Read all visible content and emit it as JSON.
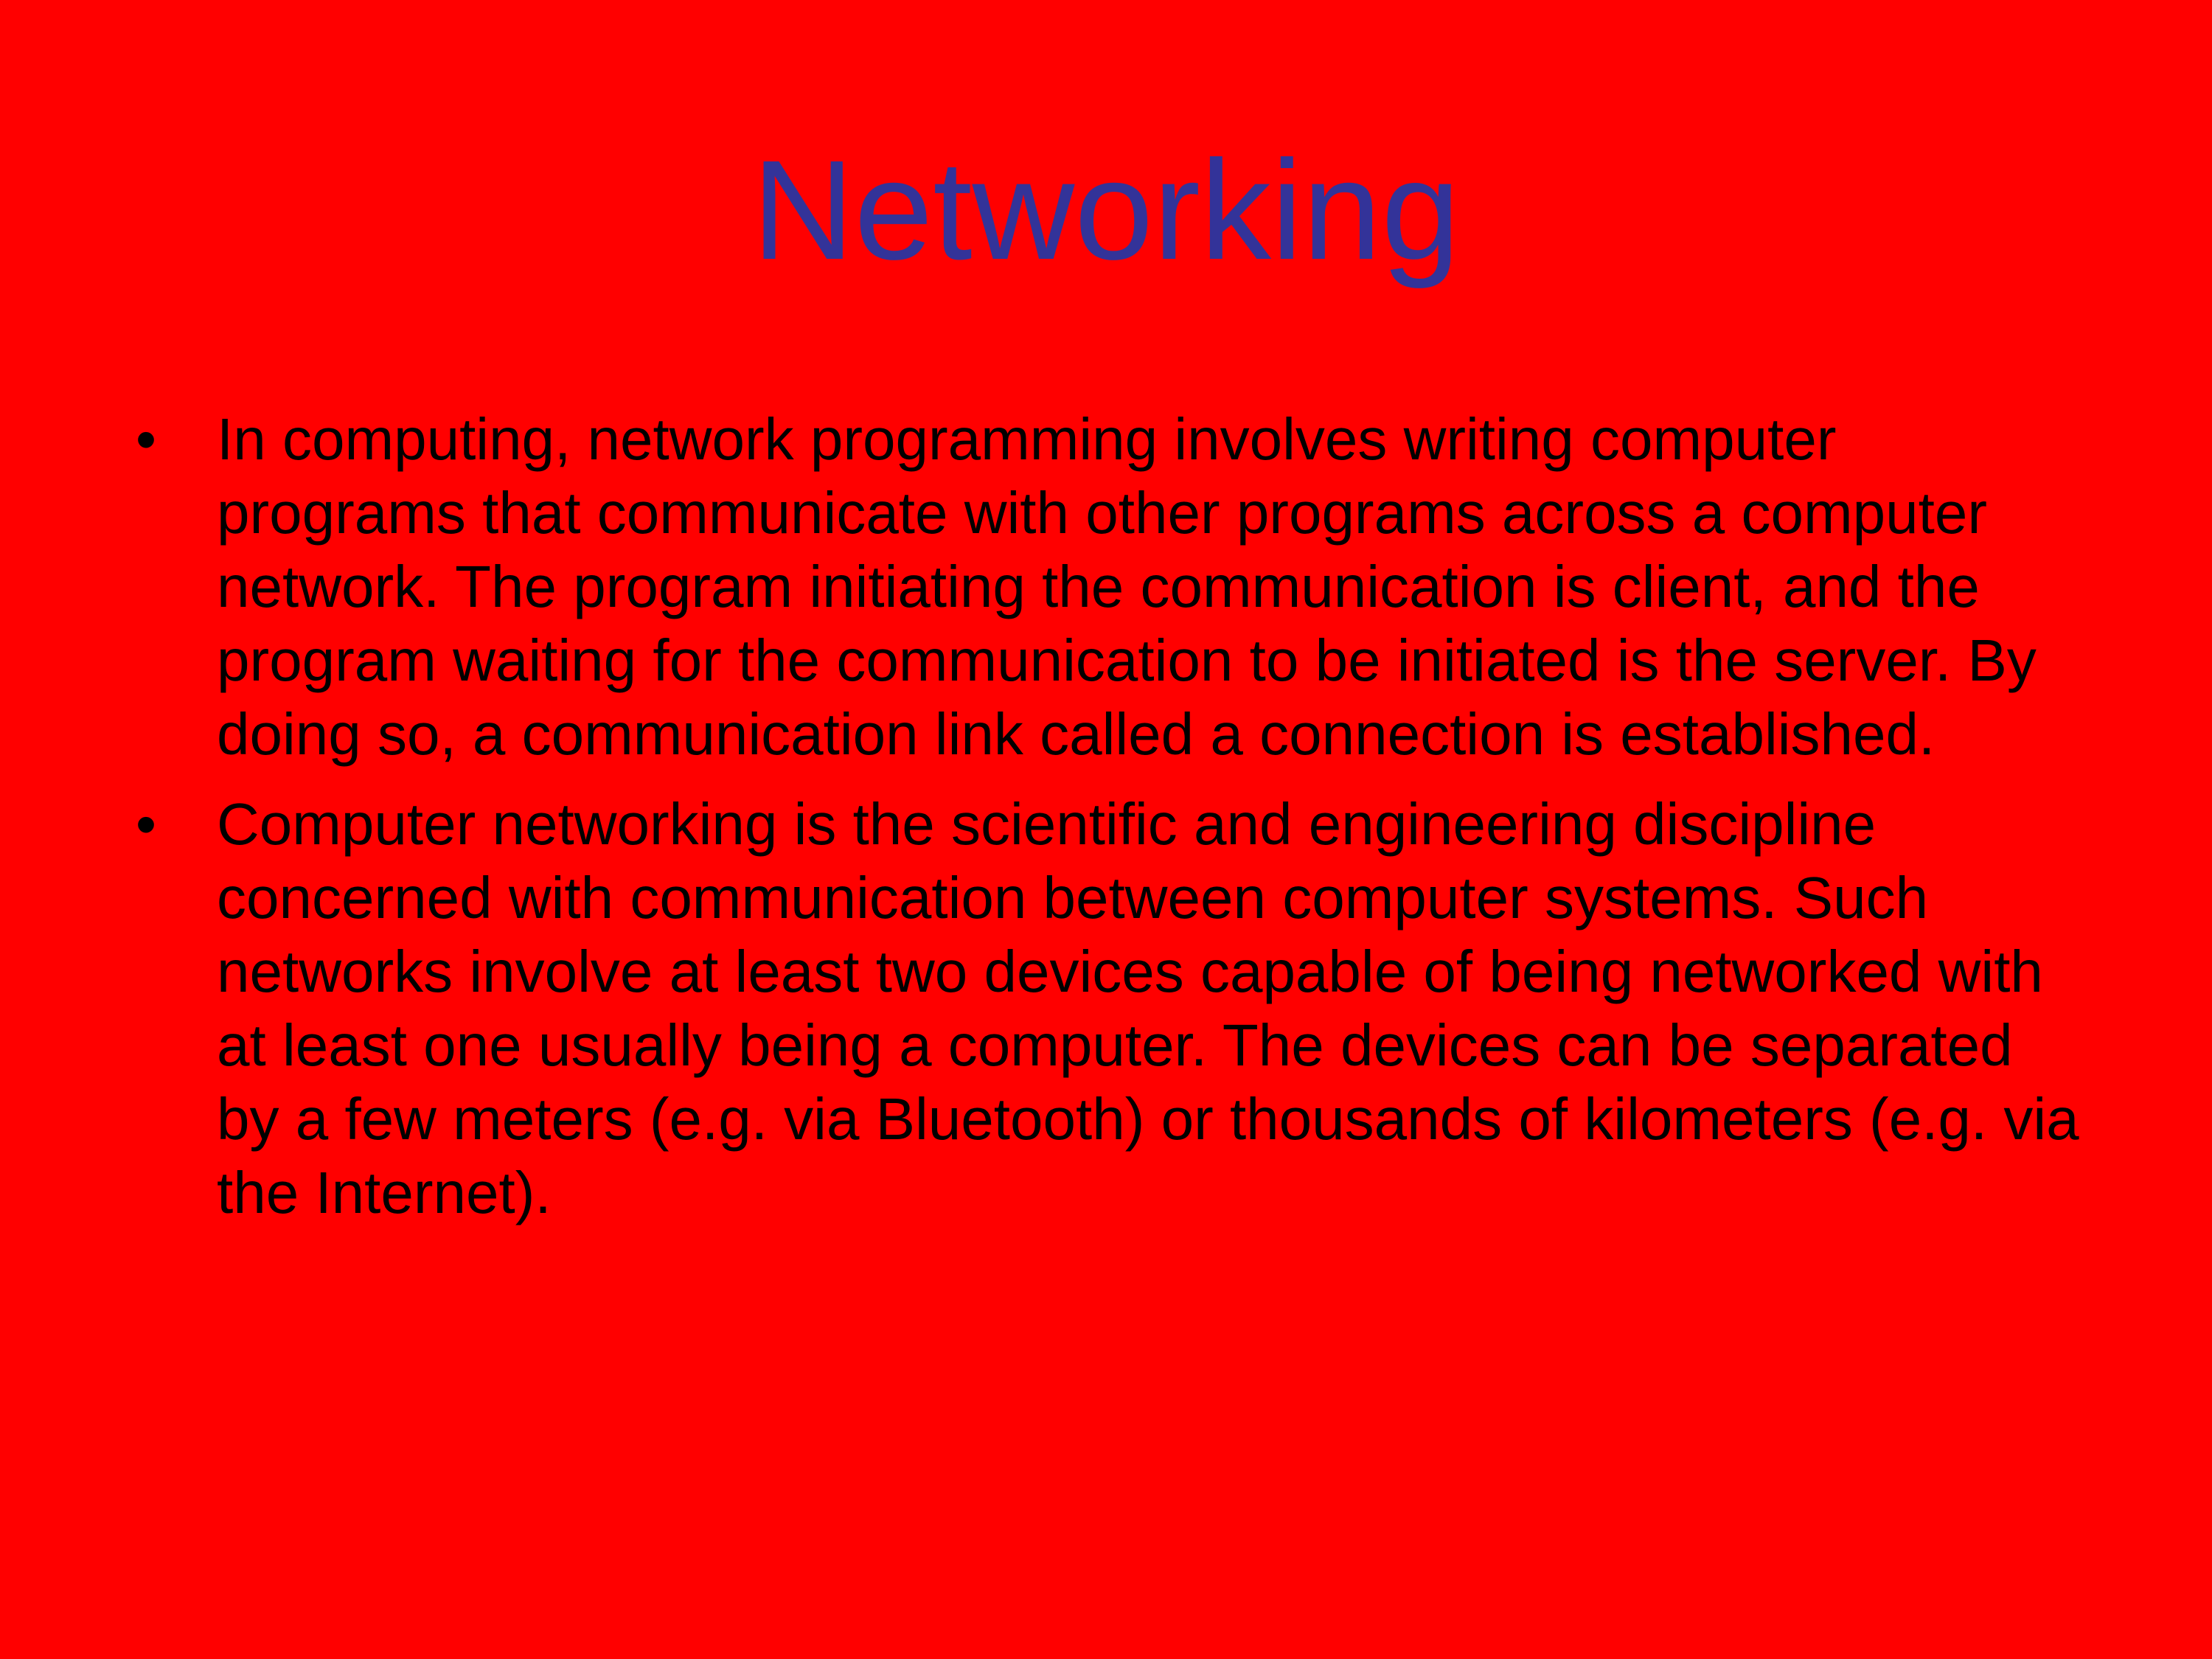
{
  "slide": {
    "title": "Networking",
    "bullet_glyph": "•",
    "bullets": [
      {
        "text": "In computing, network programming involves writing computer programs that communicate with other programs across a computer network. The program initiating the communication is client, and the program waiting for the communication to be initiated is the server. By doing so, a communication link called a connection is established."
      },
      {
        "text": "Computer networking is the scientific and engineering discipline concerned with communication between computer systems. Such networks involve at least two devices capable of being networked with at least one usually being a computer. The devices can be separated by a few meters (e.g. via Bluetooth) or thousands of kilometers (e.g. via the Internet)."
      }
    ]
  },
  "colors": {
    "background": "#ff0000",
    "title": "#333399",
    "body_text": "#000000"
  }
}
